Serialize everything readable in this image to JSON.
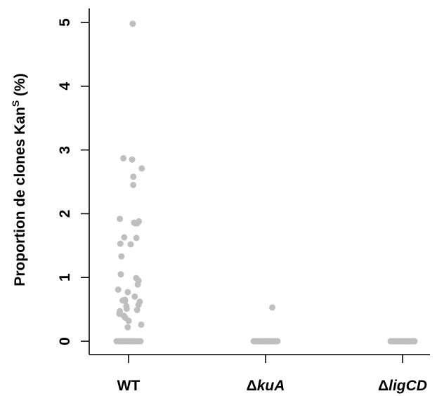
{
  "chart_data": {
    "type": "scatter",
    "title": "",
    "xlabel": "",
    "ylabel": {
      "main": "Proportion de clones Kan",
      "superscript": "S",
      "suffix": " (%)"
    },
    "ylim": [
      0,
      5
    ],
    "yticks": [
      0,
      1,
      2,
      3,
      4,
      5
    ],
    "grid": false,
    "legend": "none",
    "point_color": "#bfbfbf",
    "categories": [
      {
        "prefix": "",
        "italic": "",
        "plain": "WT"
      },
      {
        "prefix": "Δ",
        "italic": "kuA",
        "plain": ""
      },
      {
        "prefix": "Δ",
        "italic": "ligCD",
        "plain": ""
      }
    ],
    "series": [
      {
        "category_index": 0,
        "values": [
          4.98,
          2.87,
          2.85,
          2.71,
          2.58,
          2.45,
          1.92,
          1.88,
          1.86,
          1.85,
          1.85,
          1.63,
          1.62,
          1.53,
          1.52,
          1.33,
          1.05,
          0.99,
          0.95,
          0.89,
          0.81,
          0.77,
          0.7,
          0.65,
          0.64,
          0.63,
          0.62,
          0.57,
          0.55,
          0.51,
          0.49,
          0.47,
          0.43,
          0.4,
          0.37,
          0.32,
          0.26,
          0.22,
          0,
          0,
          0,
          0,
          0,
          0,
          0,
          0,
          0,
          0,
          0,
          0,
          0
        ]
      },
      {
        "category_index": 1,
        "values": [
          0.53,
          0,
          0,
          0,
          0,
          0,
          0,
          0,
          0,
          0,
          0,
          0,
          0,
          0,
          0,
          0,
          0,
          0,
          0,
          0,
          0,
          0,
          0,
          0,
          0,
          0,
          0,
          0,
          0,
          0,
          0,
          0
        ]
      },
      {
        "category_index": 2,
        "values": [
          0,
          0,
          0,
          0,
          0,
          0,
          0,
          0,
          0,
          0,
          0,
          0,
          0,
          0,
          0,
          0,
          0,
          0,
          0,
          0,
          0,
          0,
          0,
          0,
          0,
          0,
          0,
          0,
          0,
          0,
          0,
          0
        ]
      }
    ]
  }
}
